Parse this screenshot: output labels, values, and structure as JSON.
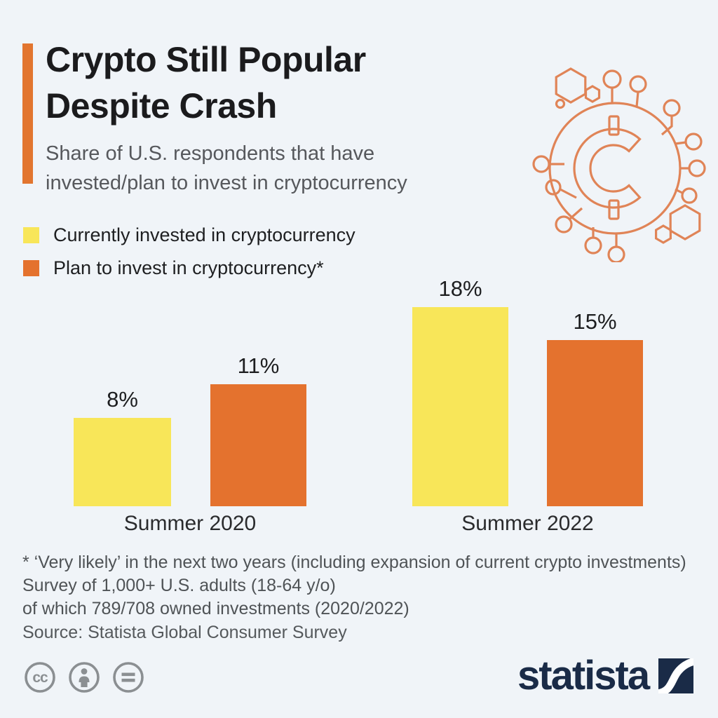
{
  "background_color": "#F0F4F8",
  "accent_color": "#E2752F",
  "header": {
    "title_line1": "Crypto Still Popular",
    "title_line2": "Despite Crash",
    "subtitle_line1": "Share of U.S. respondents that have",
    "subtitle_line2": "invested/plan to invest in cryptocurrency"
  },
  "legend": [
    {
      "label": "Currently invested in cryptocurrency",
      "color": "#F8E659"
    },
    {
      "label": "Plan to invest in cryptocurrency*",
      "color": "#E4722E"
    }
  ],
  "chart_data": {
    "type": "bar",
    "title": "Crypto Still Popular Despite Crash",
    "categories": [
      "Summer 2020",
      "Summer 2022"
    ],
    "series": [
      {
        "name": "Currently invested in cryptocurrency",
        "color": "#F8E659",
        "values": [
          8,
          18
        ]
      },
      {
        "name": "Plan to invest in cryptocurrency*",
        "color": "#E4722E",
        "values": [
          11,
          15
        ]
      }
    ],
    "value_labels": [
      [
        "8%",
        "11%"
      ],
      [
        "18%",
        "15%"
      ]
    ],
    "unit": "%",
    "ylim": [
      0,
      20
    ],
    "grid": false,
    "axes_shown": false,
    "legend_position": "top-left"
  },
  "footnotes": {
    "line1": "* ‘Very likely’ in the next two years (including expansion of current crypto investments)",
    "line2": "Survey of 1,000+ U.S. adults (18-64 y/o)",
    "line3": "of which 789/708 owned investments (2020/2022)",
    "source": "Source: Statista Global Consumer Survey"
  },
  "footer": {
    "license_icons": [
      "cc-icon",
      "attribution-icon",
      "equals-icon"
    ],
    "license_color": "#8B8F92",
    "brand": "statista",
    "brand_color": "#1A2B47"
  },
  "icons": {
    "crypto_icon": "crypto-coin-circuit",
    "crypto_icon_color": "#E08457"
  }
}
